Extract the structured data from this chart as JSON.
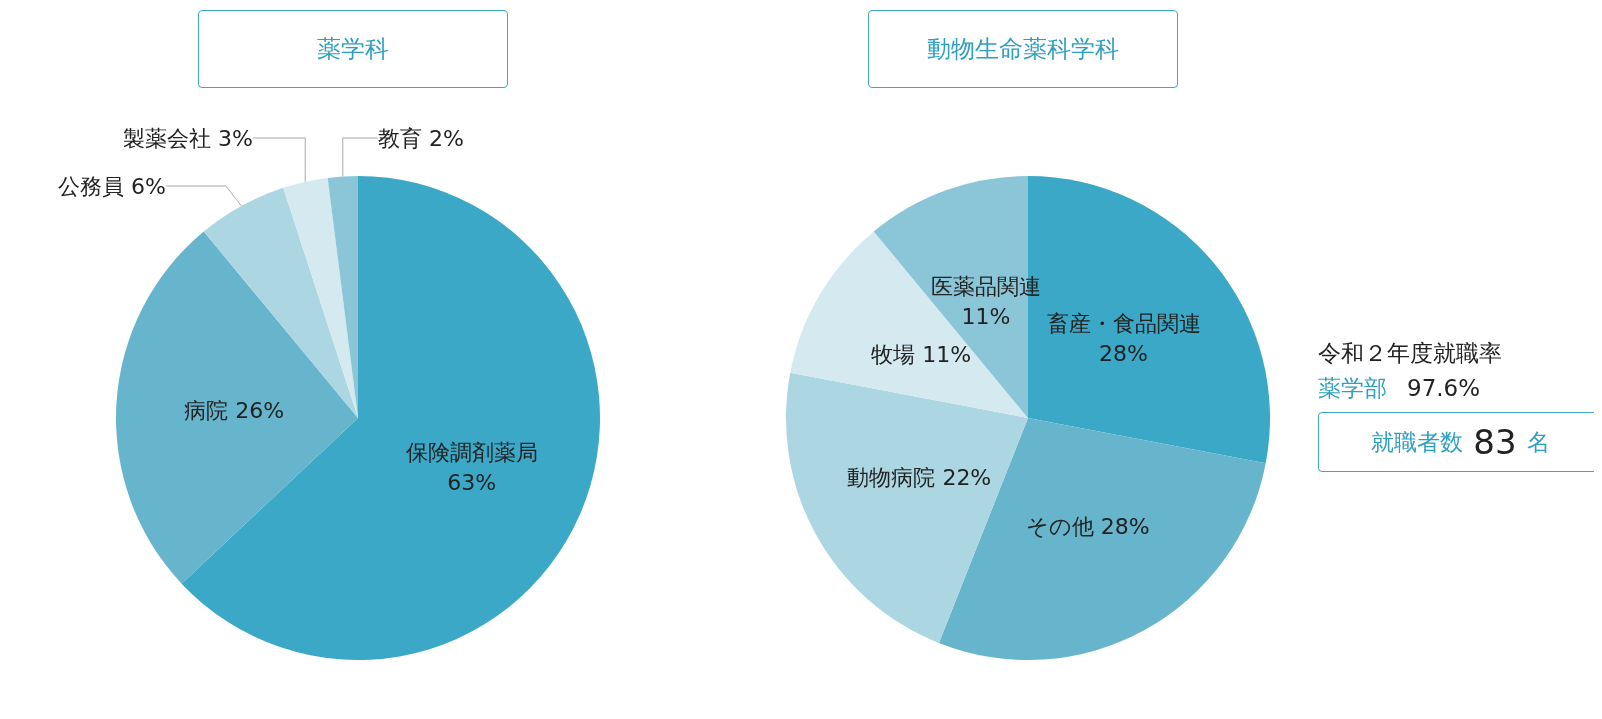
{
  "chart_data": [
    {
      "type": "pie",
      "title": "薬学科",
      "categories": [
        "保険調剤薬局",
        "病院",
        "公務員",
        "製薬会社",
        "教育"
      ],
      "values": [
        63,
        26,
        6,
        3,
        2
      ],
      "value_labels": [
        "63%",
        "26%",
        "6%",
        "3%",
        "2%"
      ],
      "colors": [
        "#3aa8c6",
        "#66b5cc",
        "#acd6e2",
        "#d5e9f0",
        "#8ac6d8"
      ],
      "legend": false
    },
    {
      "type": "pie",
      "title": "動物生命薬科学科",
      "categories": [
        "畜産・食品関連",
        "その他",
        "動物病院",
        "牧場",
        "医薬品関連"
      ],
      "values": [
        28,
        28,
        22,
        11,
        11
      ],
      "value_labels": [
        "28%",
        "28%",
        "22%",
        "11%",
        "11%"
      ],
      "colors": [
        "#3aa8c6",
        "#66b5cc",
        "#acd6e2",
        "#d5e9f0",
        "#8ac6d8"
      ],
      "legend": false
    },
    {
      "type": "other",
      "title": "令和２年度就職率",
      "annotations": [
        "薬学部",
        "97.6%",
        "就職者数",
        "83",
        "名"
      ]
    }
  ]
}
